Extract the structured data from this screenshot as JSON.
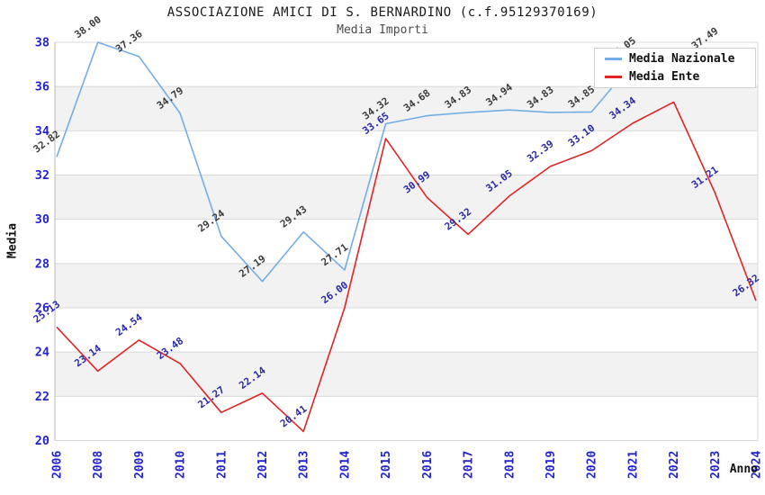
{
  "header": {
    "title": "ASSOCIAZIONE AMICI DI S. BERNARDINO (c.f.95129370169)",
    "subtitle": "Media Importi"
  },
  "axes": {
    "y_title": "Media",
    "x_title": "Anno",
    "tick_color": "#2323cc",
    "grid_color": "#d9d9d9",
    "axis_line_color": "#b9b9b9"
  },
  "legend": {
    "items": [
      {
        "label": "Media Nazionale",
        "color": "#74ade6"
      },
      {
        "label": "Media Ente",
        "color": "#e02424"
      }
    ]
  },
  "chart_data": {
    "type": "line",
    "title": "ASSOCIAZIONE AMICI DI S. BERNARDINO (c.f.95129370169)",
    "subtitle": "Media Importi",
    "xlabel": "Anno",
    "ylabel": "Media",
    "ylim": [
      20,
      38
    ],
    "y_tick_step": 2,
    "grid": "horizontal",
    "band_color": "#f2f2f2",
    "legend_position": "top-right",
    "categories": [
      "2006",
      "2008",
      "2009",
      "2010",
      "2011",
      "2012",
      "2013",
      "2014",
      "2015",
      "2016",
      "2017",
      "2018",
      "2019",
      "2020",
      "2021",
      "2022",
      "2023",
      "2024"
    ],
    "series": [
      {
        "name": "Media Nazionale",
        "color": "#74ade6",
        "label_color": "#3b3b3b",
        "values": [
          32.82,
          38.0,
          37.36,
          34.79,
          29.24,
          27.19,
          29.43,
          27.71,
          34.32,
          34.68,
          34.83,
          34.94,
          34.83,
          34.85,
          37.05,
          37.3,
          37.49,
          null
        ],
        "labels": [
          "32.82",
          "38.00",
          "37.36",
          "34.79",
          "29.24",
          "27.19",
          "29.43",
          "27.71",
          "34.32",
          "34.68",
          "34.83",
          "34.94",
          "34.83",
          "34.85",
          "37.05",
          "",
          "37.49",
          ""
        ]
      },
      {
        "name": "Media Ente",
        "color": "#e02424",
        "label_color": "#2929a3",
        "values": [
          25.13,
          23.14,
          24.54,
          23.48,
          21.27,
          22.14,
          20.41,
          26.0,
          33.65,
          30.99,
          29.32,
          31.05,
          32.39,
          33.1,
          34.34,
          35.3,
          31.21,
          26.32
        ],
        "labels": [
          "25.13",
          "23.14",
          "24.54",
          "23.48",
          "21.27",
          "22.14",
          "20.41",
          "26.00",
          "33.65",
          "30.99",
          "29.32",
          "31.05",
          "32.39",
          "33.10",
          "34.34",
          "",
          "31.21",
          "26.32"
        ]
      }
    ]
  }
}
